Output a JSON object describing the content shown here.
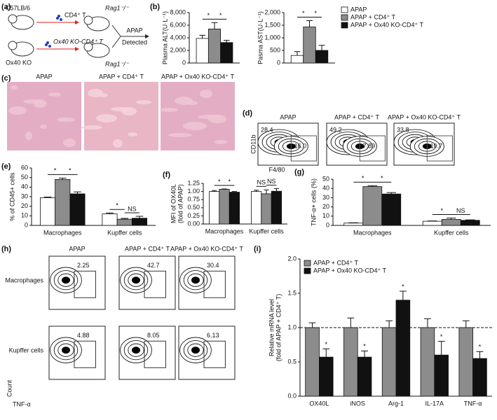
{
  "panel_labels": [
    "(a)",
    "(b)",
    "(c)",
    "(d)",
    "(e)",
    "(f)",
    "(g)",
    "(h)",
    "(i)"
  ],
  "schematic": {
    "donor_wt": "C57LB/6",
    "donor_ko": "Ox40 KO",
    "cells_wt": "CD4⁺ T",
    "cells_ko": "Ox40 KO-CD4⁺ T",
    "recipient_1": "Rag1⁻/⁻",
    "recipient_2": "Rag1⁻/⁻",
    "treatment": "APAP",
    "readout": "Detected"
  },
  "histology": {
    "titles": [
      "APAP",
      "APAP + CD4⁺ T",
      "APAP + Ox40 KO-CD4⁺ T"
    ]
  },
  "flow_d": {
    "titles": [
      "APAP",
      "APAP + CD4⁺ T",
      "APAP + Ox40 KO-CD4⁺ T"
    ],
    "gates": [
      [
        "28.4",
        "16.0"
      ],
      [
        "49.2",
        "7.89"
      ],
      [
        "33.8",
        "10.7"
      ]
    ],
    "ylabel": "CD11b",
    "xlabel": "F4/80"
  },
  "flow_h": {
    "titles": [
      "APAP",
      "APAP + CD4⁺ T",
      "APAP + Ox40 KO-CD4⁺ T"
    ],
    "rows": [
      "Macrophages",
      "Kupffer cells"
    ],
    "gates": [
      [
        "2.25",
        "42.7",
        "30.4"
      ],
      [
        "4.88",
        "8.05",
        "6.13"
      ]
    ],
    "ylabel": "Count",
    "xlabel": "TNF-α"
  },
  "chart_data": [
    {
      "type": "bar",
      "ylabel": "Plasma ALT(U·L⁻¹)",
      "categories": [
        null
      ],
      "series": [
        {
          "name": "APAP",
          "color": "#ffffff",
          "values": [
            3900
          ],
          "errors": [
            500
          ]
        },
        {
          "name": "APAP + CD4⁺ T",
          "color": "#8c8c8c",
          "values": [
            5400
          ],
          "errors": [
            1000
          ]
        },
        {
          "name": "APAP + Ox40 KO-CD4⁺ T",
          "color": "#111111",
          "values": [
            3250
          ],
          "errors": [
            350
          ]
        }
      ],
      "ylim": [
        0,
        8000
      ],
      "yticks": [
        0,
        {
          "value": 2000,
          "label": "2,000"
        },
        {
          "value": 4000,
          "label": "4,000"
        },
        {
          "value": 6000,
          "label": "6,000"
        },
        {
          "value": 8000,
          "label": "8,000"
        }
      ],
      "annotations": [
        [
          "*",
          "*"
        ]
      ],
      "legend": "right"
    },
    {
      "type": "bar",
      "ylabel": "Pasma AST(U·L⁻¹)",
      "categories": [
        null
      ],
      "series": [
        {
          "color": "#ffffff",
          "values": [
            300
          ],
          "errors": [
            150
          ]
        },
        {
          "color": "#8c8c8c",
          "values": [
            1430
          ],
          "errors": [
            250
          ]
        },
        {
          "color": "#111111",
          "values": [
            500
          ],
          "errors": [
            200
          ]
        }
      ],
      "ylim": [
        0,
        2000
      ],
      "yticks": [
        0,
        500,
        {
          "value": 1000,
          "label": "1,000"
        },
        {
          "value": 1500,
          "label": "1,500"
        },
        {
          "value": 2000,
          "label": "2,000"
        }
      ],
      "annotations": [
        [
          "*",
          "*"
        ]
      ]
    },
    {
      "type": "bar",
      "ylabel": "% of CD45+ cells",
      "categories": [
        "Macrophages",
        "Kupffer cells"
      ],
      "series": [
        {
          "color": "#ffffff",
          "values": [
            29,
            12
          ],
          "errors": [
            0.6,
            1
          ]
        },
        {
          "color": "#8c8c8c",
          "values": [
            48,
            6.5
          ],
          "errors": [
            1.5,
            0.8
          ]
        },
        {
          "color": "#111111",
          "values": [
            33,
            7.5
          ],
          "errors": [
            2,
            2
          ]
        }
      ],
      "ylim": [
        0,
        60
      ],
      "yticks": [
        0,
        10,
        20,
        30,
        40,
        50,
        60
      ],
      "annotations": [
        [
          "*",
          "*"
        ],
        [
          "*",
          "NS"
        ]
      ]
    },
    {
      "type": "bar",
      "ylabel": [
        "MFI of OX40L",
        "(fold of APAP)"
      ],
      "categories": [
        "Macrophages",
        "Kupffer cells"
      ],
      "series": [
        {
          "color": "#ffffff",
          "values": [
            1.0,
            1.0
          ],
          "errors": [
            0.03,
            0.04
          ]
        },
        {
          "color": "#8c8c8c",
          "values": [
            1.07,
            0.93
          ],
          "errors": [
            0.01,
            0.12
          ]
        },
        {
          "color": "#111111",
          "values": [
            0.98,
            1.01
          ],
          "errors": [
            0.02,
            0.08
          ]
        }
      ],
      "ylim": [
        0,
        1.25
      ],
      "yticks": [
        {
          "value": 0,
          "label": "0.00"
        },
        {
          "value": 0.25,
          "label": "0.25"
        },
        {
          "value": 0.5,
          "label": "0.50"
        },
        {
          "value": 0.75,
          "label": "0.75"
        },
        {
          "value": 1,
          "label": "1.00"
        },
        {
          "value": 1.25,
          "label": "1.25"
        }
      ],
      "annotations": [
        [
          "*",
          "*"
        ],
        [
          "NS",
          "NS"
        ]
      ]
    },
    {
      "type": "bar",
      "ylabel": "TNF-α+ cells (%)",
      "categories": [
        "Macrophages",
        "Kupffer cells"
      ],
      "series": [
        {
          "color": "#ffffff",
          "values": [
            2.5,
            4.5
          ],
          "errors": [
            0.3,
            0.3
          ]
        },
        {
          "color": "#8c8c8c",
          "values": [
            42,
            6.5
          ],
          "errors": [
            1,
            1.5
          ]
        },
        {
          "color": "#111111",
          "values": [
            34,
            5.5
          ],
          "errors": [
            1.5,
            0.5
          ]
        }
      ],
      "ylim": [
        0,
        50
      ],
      "yticks": [
        0,
        10,
        20,
        30,
        40,
        50
      ],
      "annotations": [
        [
          "*",
          "*"
        ],
        [
          "*",
          "NS"
        ]
      ]
    },
    {
      "type": "bar",
      "ylabel": [
        "Relative mRNA level",
        "(fold of APAP + CD4⁺ T)"
      ],
      "categories": [
        "OX40L",
        "iNOS",
        "Arg-1",
        "IL-17A",
        "TNF-α"
      ],
      "series": [
        {
          "name": "APAP + CD4⁺ T",
          "color": "#8c8c8c",
          "values": [
            1,
            1,
            1,
            1,
            1
          ],
          "errors": [
            0.07,
            0.14,
            0.1,
            0.13,
            0.1
          ]
        },
        {
          "name": "APAP + Ox40 KO-CD4⁺ T",
          "color": "#111111",
          "values": [
            0.57,
            0.57,
            1.4,
            0.6,
            0.55
          ],
          "errors": [
            0.12,
            0.09,
            0.13,
            0.2,
            0.1
          ]
        }
      ],
      "ylim": [
        0,
        2
      ],
      "yticks": [
        {
          "value": 0,
          "label": "0.0"
        },
        {
          "value": 0.5,
          "label": "0.5"
        },
        {
          "value": 1,
          "label": "1.0"
        },
        {
          "value": 1.5,
          "label": "1.5"
        },
        {
          "value": 2,
          "label": "2.0"
        }
      ],
      "hline": 1,
      "annotations": [
        [
          "*"
        ],
        [
          "*"
        ],
        [
          "*"
        ],
        [
          "*"
        ],
        [
          "*"
        ]
      ],
      "legend": "upper left"
    }
  ]
}
